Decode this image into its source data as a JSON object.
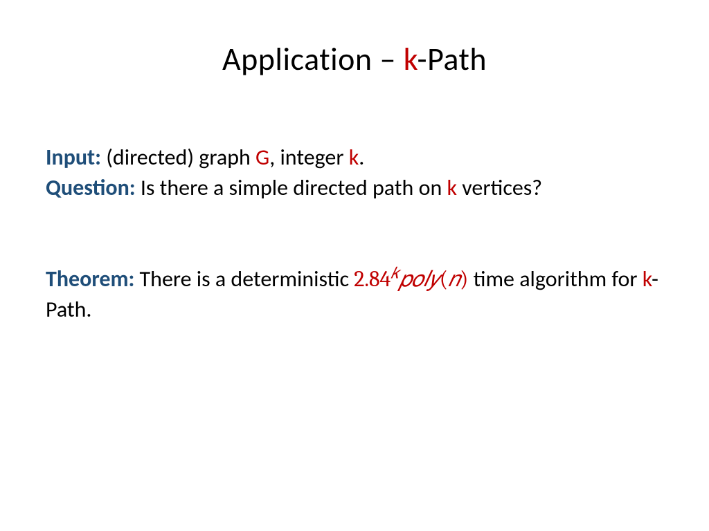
{
  "title": {
    "prefix": "Application – ",
    "k": "k",
    "suffix": "-Path"
  },
  "input": {
    "label": "Input:",
    "t1": " (directed) graph ",
    "G": "G",
    "t2": ", integer ",
    "k": "k",
    "t3": "."
  },
  "question": {
    "label": "Question:",
    "t1": " Is there a simple directed path on ",
    "k": "k",
    "t2": " vertices?"
  },
  "theorem": {
    "label": "Theorem:",
    "t1": " There is a deterministic ",
    "math_base": "2.84",
    "math_exp": "𝑘",
    "math_poly": "𝑝𝑜𝑙𝑦",
    "math_open": "(",
    "math_n": "𝑛",
    "math_close": ")",
    "t2": " time algorithm for ",
    "k": "k",
    "t3": "-Path."
  },
  "colors": {
    "label": "#1f4e79",
    "var": "#c00000",
    "text": "#000000",
    "background": "#ffffff"
  },
  "typography": {
    "title_fontsize": 46,
    "body_fontsize": 32,
    "font_family": "Calibri",
    "math_font_family": "Cambria Math"
  }
}
